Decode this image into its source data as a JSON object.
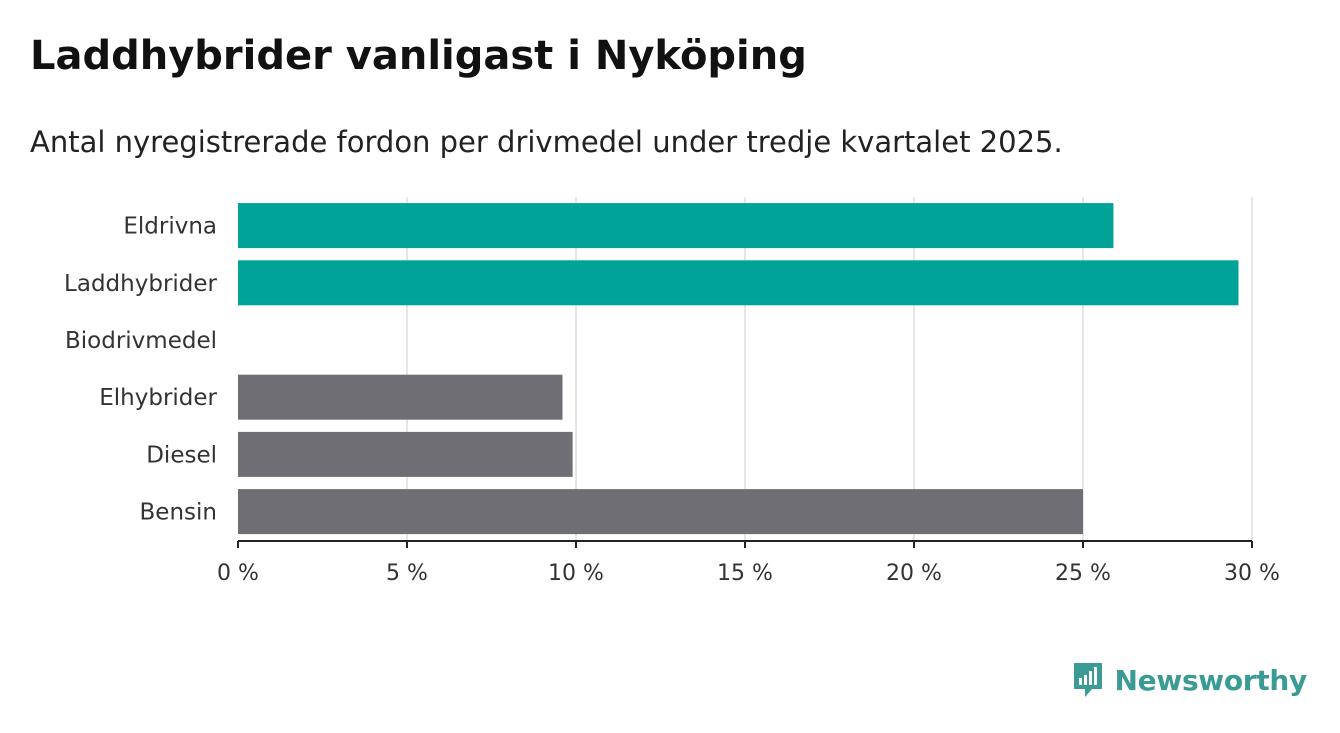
{
  "header": {
    "title": "Laddhybrider vanligast i Nyköping",
    "subtitle": "Antal nyregistrerade fordon per drivmedel under tredje kvartalet 2025."
  },
  "chart_data": {
    "type": "bar",
    "orientation": "horizontal",
    "categories": [
      "Eldrivna",
      "Laddhybrider",
      "Biodrivmedel",
      "Elhybrider",
      "Diesel",
      "Bensin"
    ],
    "values": [
      25.9,
      29.6,
      0,
      9.6,
      9.9,
      25.0
    ],
    "unit": "%",
    "xlim": [
      0,
      30
    ],
    "ticks": [
      0,
      5,
      10,
      15,
      20,
      25,
      30
    ],
    "tick_labels": [
      "0 %",
      "5 %",
      "10 %",
      "15 %",
      "20 %",
      "25 %",
      "30 %"
    ],
    "grid": true,
    "colors": {
      "highlight": "#00a398",
      "default": "#6f6e74",
      "grid": "#dddddd",
      "axis": "#222222"
    },
    "highlighted": [
      "Eldrivna",
      "Laddhybrider"
    ]
  },
  "brand": {
    "name": "Newsworthy",
    "icon": "newsworthy-logo-icon",
    "color": "#3a9b95"
  }
}
